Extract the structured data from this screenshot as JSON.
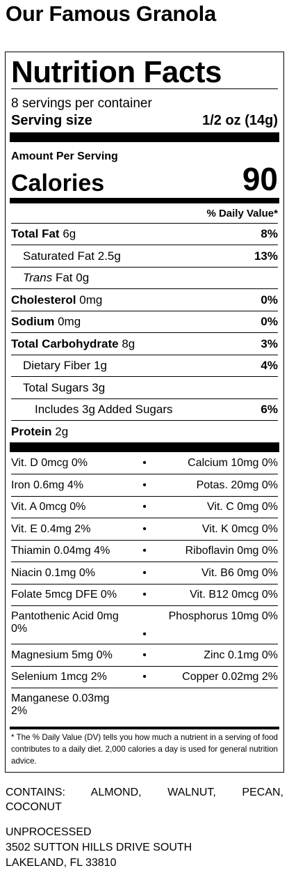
{
  "product_title": "Our Famous Granola",
  "panel": {
    "title": "Nutrition Facts",
    "servings_per_container": "8 servings per container",
    "serving_size_label": "Serving size",
    "serving_size_value": "1/2 oz (14g)",
    "amount_per_serving": "Amount Per Serving",
    "calories_label": "Calories",
    "calories_value": "90",
    "dv_header": "% Daily Value*",
    "nutrients": [
      {
        "name": "Total Fat",
        "amount": "6g",
        "dv": "8%"
      },
      {
        "name": "Saturated Fat",
        "amount": "2.5g",
        "dv": "13%"
      },
      {
        "name_italic": "Trans",
        "name": "Fat",
        "amount": "0g",
        "dv": ""
      },
      {
        "name": "Cholesterol",
        "amount": "0mg",
        "dv": "0%"
      },
      {
        "name": "Sodium",
        "amount": "0mg",
        "dv": "0%"
      },
      {
        "name": "Total Carbohydrate",
        "amount": "8g",
        "dv": "3%"
      },
      {
        "name": "Dietary Fiber",
        "amount": "1g",
        "dv": "4%"
      },
      {
        "name": "Total Sugars",
        "amount": "3g",
        "dv": ""
      },
      {
        "name": "Includes 3g Added Sugars",
        "amount": "",
        "dv": "6%"
      },
      {
        "name": "Protein",
        "amount": "2g",
        "dv": ""
      }
    ],
    "vitamins": [
      {
        "left": "Vit. D 0mcg 0%",
        "right": "Calcium 10mg 0%"
      },
      {
        "left": "Iron 0.6mg 4%",
        "right": "Potas. 20mg 0%"
      },
      {
        "left": "Vit. A 0mcg 0%",
        "right": "Vit. C 0mg 0%"
      },
      {
        "left": "Vit. E 0.4mg 2%",
        "right": "Vit. K 0mcg 0%"
      },
      {
        "left": "Thiamin 0.04mg 4%",
        "right": "Riboflavin 0mg 0%"
      },
      {
        "left": "Niacin 0.1mg 0%",
        "right": "Vit. B6 0mg 0%"
      },
      {
        "left": "Folate 5mcg DFE 0%",
        "right": "Vit. B12 0mcg 0%"
      },
      {
        "left": "Pantothenic Acid 0mg 0%",
        "right": "Phosphorus 10mg 0%"
      },
      {
        "left": "Magnesium 5mg 0%",
        "right": "Zinc 0.1mg 0%"
      },
      {
        "left": "Selenium 1mcg 2%",
        "right": "Copper 0.02mg 2%"
      }
    ],
    "vitamin_last": "Manganese 0.03mg 2%",
    "bullet": "•",
    "footnote": "* The % Daily Value (DV) tells you how much a nutrient in a serving of food contributes to a daily diet. 2,000 calories a day is used for general nutrition advice."
  },
  "contains_line1": "CONTAINS: ALMOND, WALNUT, PECAN,",
  "contains_line2": "COCONUT",
  "address": {
    "line1": "UNPROCESSED",
    "line2": "3502 SUTTON HILLS DRIVE SOUTH",
    "line3": "LAKELAND, FL 33810"
  }
}
